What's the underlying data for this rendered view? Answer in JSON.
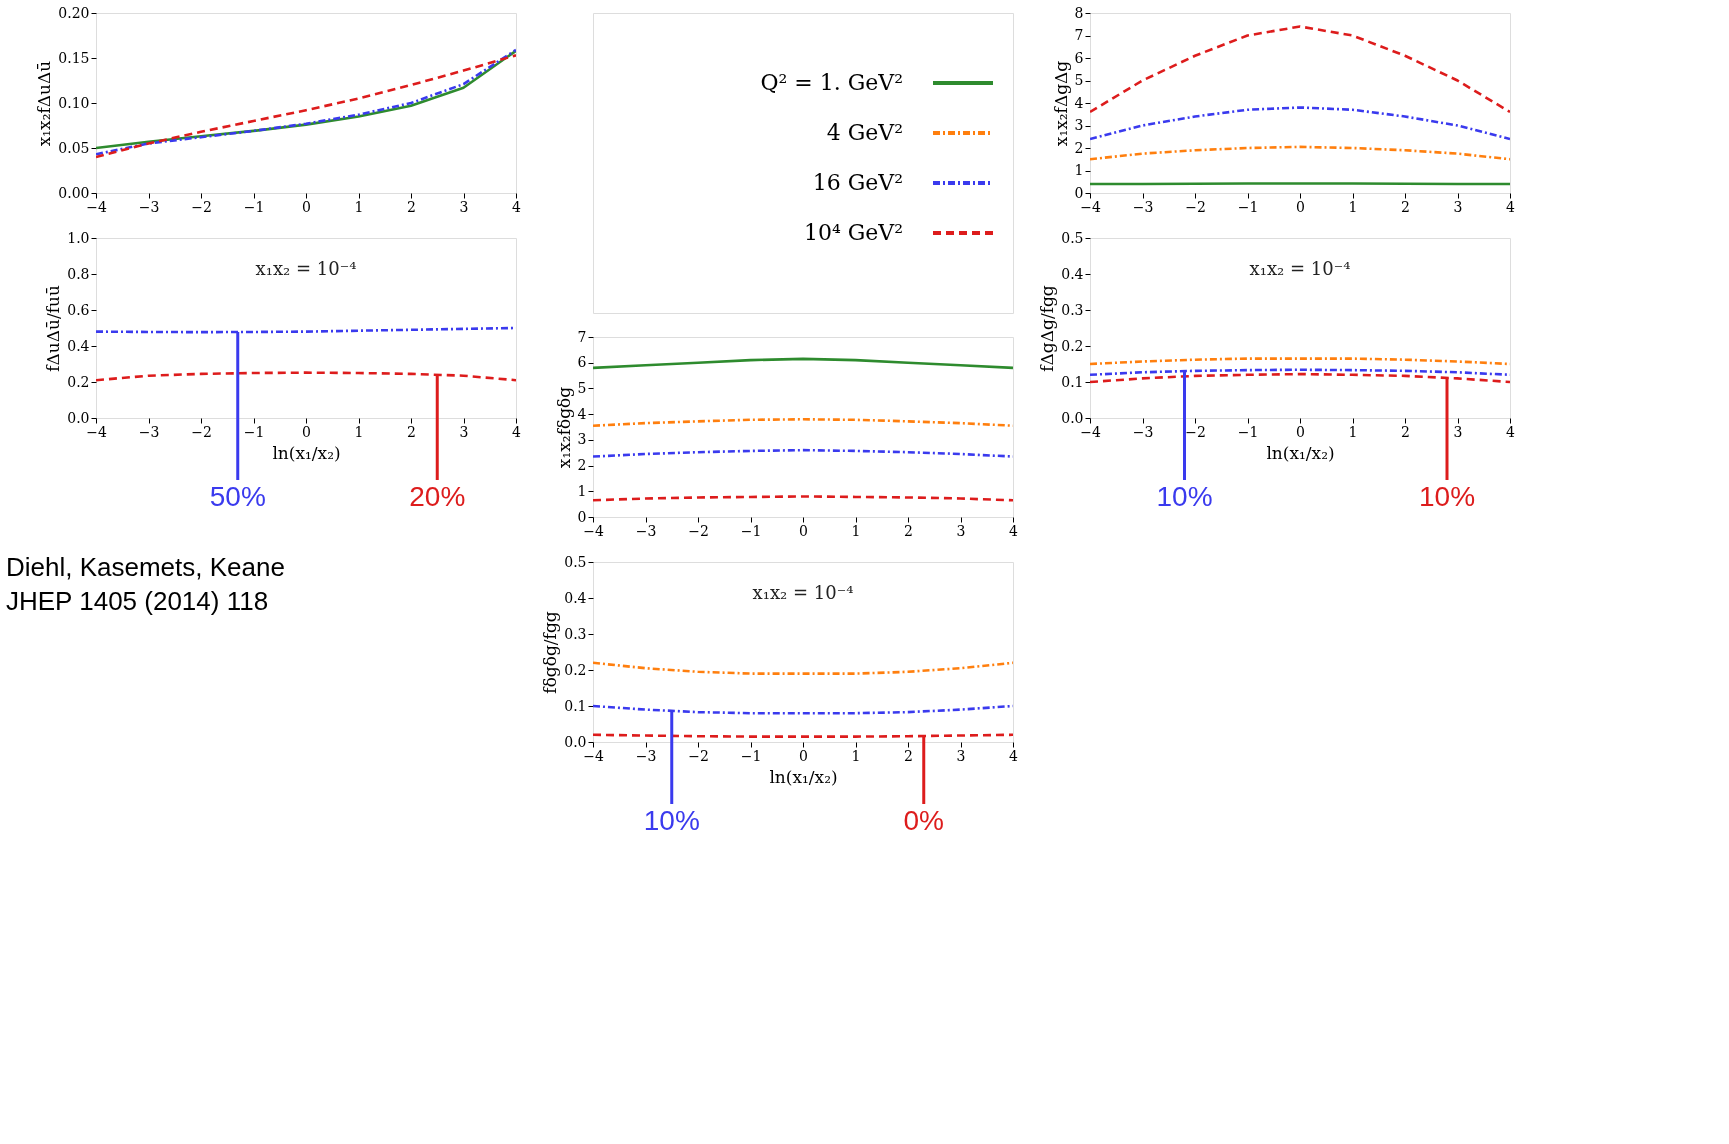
{
  "chart_data": [
    {
      "type": "line",
      "ylabel": "x₁x₂fΔuΔū",
      "x": [
        -4,
        -3,
        -2,
        -1,
        0,
        1,
        2,
        3,
        4
      ],
      "xlim": [
        -4,
        4
      ],
      "xticks": [
        -4,
        -3,
        -2,
        -1,
        0,
        1,
        2,
        3,
        4
      ],
      "ylim": [
        0,
        0.2
      ],
      "yticks": [
        {
          "value": 0,
          "label": "0.00"
        },
        0.05,
        {
          "value": 0.1,
          "label": "0.10"
        },
        0.15,
        {
          "value": 0.2,
          "label": "0.20"
        }
      ],
      "series": [
        {
          "color": "#2e8b2e",
          "line_style": "solid",
          "values": [
            0.05,
            0.057,
            0.063,
            0.069,
            0.076,
            0.085,
            0.097,
            0.117,
            0.158
          ]
        },
        {
          "color": "#3a3aee",
          "line_style": "dotted",
          "values": [
            0.043,
            0.055,
            0.062,
            0.069,
            0.077,
            0.087,
            0.1,
            0.121,
            0.159
          ]
        },
        {
          "color": "#dd1c1c",
          "line_style": "dashed",
          "values": [
            0.04,
            0.055,
            0.068,
            0.08,
            0.092,
            0.105,
            0.12,
            0.136,
            0.153
          ]
        }
      ]
    },
    {
      "type": "line",
      "xlabel": "ln(x₁/x₂)",
      "ylabel": "fΔuΔū/fuū",
      "x": [
        -4,
        -3,
        -2,
        -1,
        0,
        1,
        2,
        3,
        4
      ],
      "xlim": [
        -4,
        4
      ],
      "xticks": [
        -4,
        -3,
        -2,
        -1,
        0,
        1,
        2,
        3,
        4
      ],
      "ylim": [
        0,
        1
      ],
      "yticks": [
        {
          "value": 0,
          "label": "0.0"
        },
        0.2,
        0.4,
        0.6,
        0.8,
        {
          "value": 1,
          "label": "1.0"
        }
      ],
      "annotations": [
        "x₁x₂ = 10⁻⁴",
        "Diehl, Kasemets, Keane",
        "JHEP 1405 (2014) 118",
        {
          "text": "50%",
          "x": -1.3,
          "y": 0.478
        },
        {
          "text": "20%",
          "x": 2.5,
          "y": 0.24
        }
      ],
      "series": [
        {
          "color": "#3a3aee",
          "line_style": "dotted",
          "values": [
            0.48,
            0.478,
            0.477,
            0.478,
            0.48,
            0.485,
            0.49,
            0.495,
            0.5
          ]
        },
        {
          "color": "#dd1c1c",
          "line_style": "dashed",
          "values": [
            0.21,
            0.235,
            0.245,
            0.25,
            0.252,
            0.25,
            0.245,
            0.235,
            0.21
          ]
        }
      ]
    },
    {
      "type": "line",
      "ylabel": "x₁x₂fΔgΔg",
      "x": [
        -4,
        -3,
        -2,
        -1,
        0,
        1,
        2,
        3,
        4
      ],
      "xlim": [
        -4,
        4
      ],
      "xticks": [
        -4,
        -3,
        -2,
        -1,
        0,
        1,
        2,
        3,
        4
      ],
      "ylim": [
        0,
        8
      ],
      "yticks": [
        0,
        1,
        2,
        3,
        4,
        5,
        6,
        7,
        8
      ],
      "series": [
        {
          "color": "#2e8b2e",
          "line_style": "solid",
          "values": [
            0.4,
            0.4,
            0.41,
            0.42,
            0.42,
            0.42,
            0.41,
            0.4,
            0.4
          ]
        },
        {
          "color": "#ff7f0e",
          "line_style": "dotted",
          "values": [
            1.5,
            1.75,
            1.9,
            2.0,
            2.05,
            2.0,
            1.9,
            1.75,
            1.5
          ]
        },
        {
          "color": "#3a3aee",
          "line_style": "dotted",
          "values": [
            2.4,
            3.0,
            3.4,
            3.7,
            3.8,
            3.7,
            3.4,
            3.0,
            2.4
          ]
        },
        {
          "color": "#dd1c1c",
          "line_style": "dashed",
          "values": [
            3.6,
            5.0,
            6.1,
            7.0,
            7.4,
            7.0,
            6.1,
            5.0,
            3.6
          ]
        }
      ]
    },
    {
      "type": "line",
      "xlabel": "ln(x₁/x₂)",
      "ylabel": "fΔgΔg/fgg",
      "x": [
        -4,
        -3,
        -2,
        -1,
        0,
        1,
        2,
        3,
        4
      ],
      "xlim": [
        -4,
        4
      ],
      "xticks": [
        -4,
        -3,
        -2,
        -1,
        0,
        1,
        2,
        3,
        4
      ],
      "ylim": [
        0,
        0.5
      ],
      "yticks": [
        {
          "value": 0,
          "label": "0.0"
        },
        0.1,
        0.2,
        0.3,
        0.4,
        0.5
      ],
      "annotations": [
        "x₁x₂ = 10⁻⁴",
        {
          "text": "10%",
          "x": -2.2,
          "y": 0.13
        },
        {
          "text": "10%",
          "x": 2.8,
          "y": 0.112
        }
      ],
      "series": [
        {
          "color": "#ff7f0e",
          "line_style": "dotted",
          "values": [
            0.15,
            0.157,
            0.162,
            0.165,
            0.165,
            0.165,
            0.162,
            0.157,
            0.15
          ]
        },
        {
          "color": "#3a3aee",
          "line_style": "dotted",
          "values": [
            0.12,
            0.127,
            0.131,
            0.133,
            0.134,
            0.133,
            0.131,
            0.127,
            0.12
          ]
        },
        {
          "color": "#dd1c1c",
          "line_style": "dashed",
          "values": [
            0.1,
            0.11,
            0.117,
            0.12,
            0.122,
            0.12,
            0.117,
            0.11,
            0.1
          ]
        }
      ]
    },
    {
      "type": "line",
      "ylabel": "x₁x₂fδgδg",
      "legend": "top",
      "x": [
        -4,
        -3,
        -2,
        -1,
        0,
        1,
        2,
        3,
        4
      ],
      "xlim": [
        -4,
        4
      ],
      "xticks": [
        -4,
        -3,
        -2,
        -1,
        0,
        1,
        2,
        3,
        4
      ],
      "ylim": [
        0,
        7
      ],
      "yticks": [
        0,
        1,
        2,
        3,
        4,
        5,
        6,
        7
      ],
      "series": [
        {
          "name": "Q² = 1. GeV²",
          "color": "#2e8b2e",
          "line_style": "solid",
          "values": [
            5.8,
            5.9,
            6.0,
            6.1,
            6.15,
            6.1,
            6.0,
            5.9,
            5.8
          ]
        },
        {
          "name": "4 GeV²",
          "color": "#ff7f0e",
          "line_style": "dotted",
          "values": [
            3.55,
            3.65,
            3.72,
            3.78,
            3.8,
            3.78,
            3.72,
            3.65,
            3.55
          ]
        },
        {
          "name": "16 GeV²",
          "color": "#3a3aee",
          "line_style": "dotted",
          "values": [
            2.35,
            2.45,
            2.52,
            2.57,
            2.6,
            2.57,
            2.52,
            2.45,
            2.35
          ]
        },
        {
          "name": "10⁴ GeV²",
          "color": "#dd1c1c",
          "line_style": "dashed",
          "values": [
            0.65,
            0.72,
            0.76,
            0.78,
            0.8,
            0.78,
            0.76,
            0.72,
            0.65
          ]
        }
      ]
    },
    {
      "type": "line",
      "xlabel": "ln(x₁/x₂)",
      "ylabel": "fδgδg/fgg",
      "x": [
        -4,
        -3,
        -2,
        -1,
        0,
        1,
        2,
        3,
        4
      ],
      "xlim": [
        -4,
        4
      ],
      "xticks": [
        -4,
        -3,
        -2,
        -1,
        0,
        1,
        2,
        3,
        4
      ],
      "ylim": [
        0,
        0.5
      ],
      "yticks": [
        {
          "value": 0,
          "label": "0.0"
        },
        0.1,
        0.2,
        0.3,
        0.4,
        0.5
      ],
      "annotations": [
        "x₁x₂ = 10⁻⁴",
        {
          "text": "10%",
          "x": -2.5,
          "y": 0.088
        },
        {
          "text": "0%",
          "x": 2.3,
          "y": 0.016
        }
      ],
      "series": [
        {
          "color": "#ff7f0e",
          "line_style": "dotted",
          "values": [
            0.22,
            0.205,
            0.195,
            0.19,
            0.19,
            0.19,
            0.195,
            0.205,
            0.22
          ]
        },
        {
          "color": "#3a3aee",
          "line_style": "dotted",
          "values": [
            0.1,
            0.09,
            0.083,
            0.08,
            0.08,
            0.08,
            0.083,
            0.09,
            0.1
          ]
        },
        {
          "color": "#dd1c1c",
          "line_style": "dashed",
          "values": [
            0.02,
            0.018,
            0.016,
            0.015,
            0.015,
            0.015,
            0.016,
            0.018,
            0.02
          ]
        }
      ]
    }
  ]
}
